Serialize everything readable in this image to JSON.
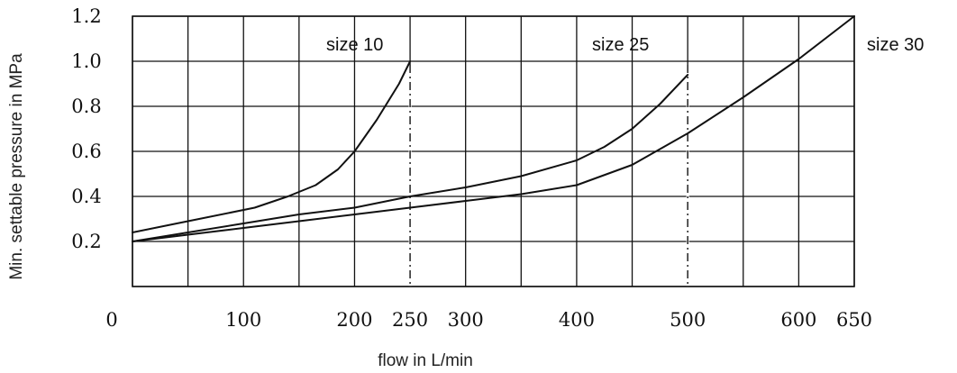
{
  "chart_data": {
    "type": "line",
    "xlabel": "flow in L/min",
    "ylabel": "Min. settable pressure in MPa",
    "xlim": [
      0,
      650
    ],
    "ylim": [
      0,
      1.2
    ],
    "x_ticks": [
      {
        "value": 0,
        "label": "0"
      },
      {
        "value": 100,
        "label": "100"
      },
      {
        "value": 200,
        "label": "200"
      },
      {
        "value": 250,
        "label": "250"
      },
      {
        "value": 300,
        "label": "300"
      },
      {
        "value": 400,
        "label": "400"
      },
      {
        "value": 500,
        "label": "500"
      },
      {
        "value": 600,
        "label": "600"
      },
      {
        "value": 650,
        "label": "650"
      }
    ],
    "y_ticks": [
      {
        "value": 0.2,
        "label": "0.2"
      },
      {
        "value": 0.4,
        "label": "0.4"
      },
      {
        "value": 0.6,
        "label": "0.6"
      },
      {
        "value": 0.8,
        "label": "0.8"
      },
      {
        "value": 1.0,
        "label": "1.0"
      },
      {
        "value": 1.2,
        "label": "1.2"
      }
    ],
    "grid": true,
    "x_grid_values": [
      0,
      50,
      100,
      150,
      200,
      250,
      300,
      350,
      400,
      450,
      500,
      550,
      600,
      650
    ],
    "y_grid_values": [
      0,
      0.2,
      0.4,
      0.6,
      0.8,
      1.0,
      1.2
    ],
    "series": [
      {
        "name": "size 10",
        "points": [
          [
            0,
            0.24
          ],
          [
            50,
            0.29
          ],
          [
            110,
            0.35
          ],
          [
            140,
            0.4
          ],
          [
            165,
            0.45
          ],
          [
            185,
            0.52
          ],
          [
            200,
            0.6
          ],
          [
            220,
            0.74
          ],
          [
            240,
            0.9
          ],
          [
            250,
            1.0
          ]
        ]
      },
      {
        "name": "size 25",
        "points": [
          [
            0,
            0.2
          ],
          [
            50,
            0.24
          ],
          [
            100,
            0.28
          ],
          [
            150,
            0.32
          ],
          [
            200,
            0.35
          ],
          [
            250,
            0.4
          ],
          [
            300,
            0.44
          ],
          [
            350,
            0.49
          ],
          [
            400,
            0.56
          ],
          [
            425,
            0.62
          ],
          [
            450,
            0.7
          ],
          [
            475,
            0.81
          ],
          [
            500,
            0.94
          ]
        ]
      },
      {
        "name": "size 30",
        "points": [
          [
            0,
            0.2
          ],
          [
            50,
            0.23
          ],
          [
            100,
            0.26
          ],
          [
            150,
            0.29
          ],
          [
            200,
            0.32
          ],
          [
            250,
            0.35
          ],
          [
            300,
            0.38
          ],
          [
            350,
            0.41
          ],
          [
            400,
            0.45
          ],
          [
            450,
            0.54
          ],
          [
            500,
            0.68
          ],
          [
            550,
            0.84
          ],
          [
            600,
            1.01
          ],
          [
            650,
            1.2
          ]
        ]
      }
    ],
    "series_label_positions": [
      "top-near-250",
      "top-near-500",
      "right-of-plot-at-top"
    ],
    "dash_dot_markers_x": [
      250,
      500
    ]
  }
}
